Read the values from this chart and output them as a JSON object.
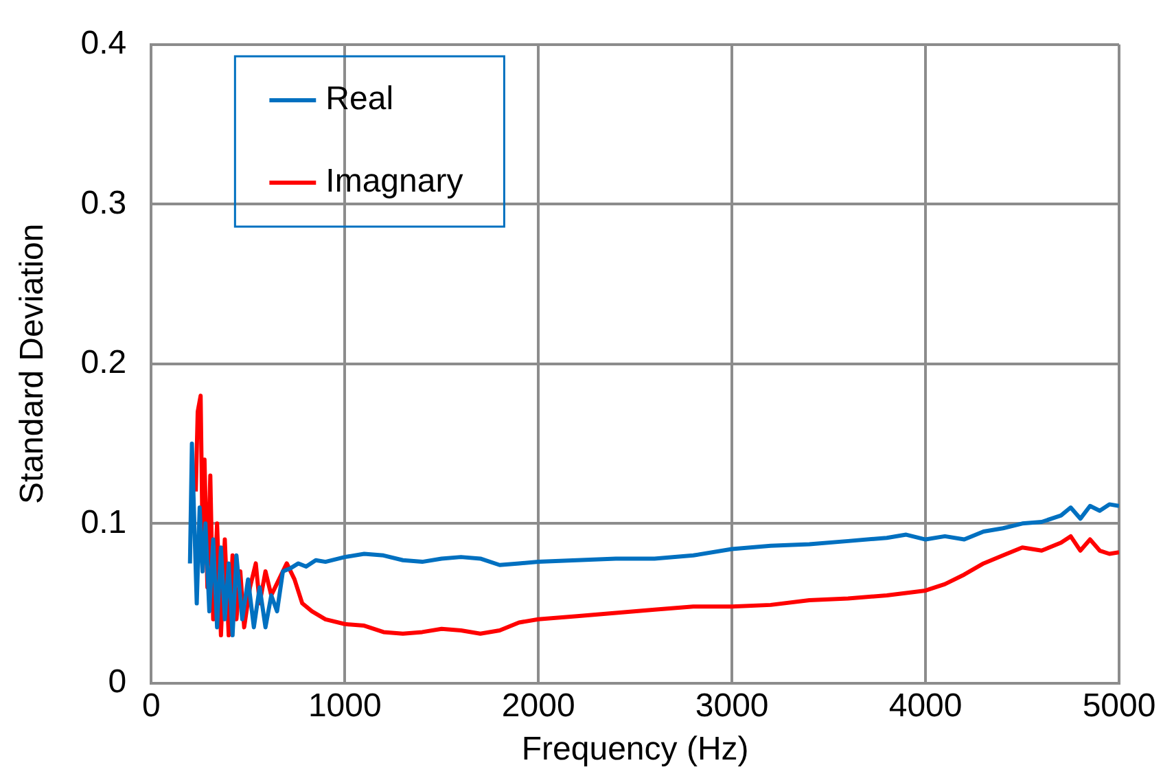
{
  "chart_data": {
    "type": "line",
    "xlabel": "Frequency (Hz)",
    "ylabel": "Standard Deviation",
    "xlim": [
      0,
      5000
    ],
    "xticks": [
      0,
      1000,
      2000,
      3000,
      4000,
      5000
    ],
    "ylim": [
      0,
      0.4
    ],
    "yticks": [
      0,
      0.1,
      0.2,
      0.3,
      0.4
    ],
    "grid": true,
    "legend": "top left",
    "marker": "none",
    "line_style": "solid",
    "series": [
      {
        "name": "Real",
        "color": "#0070c0",
        "x": [
          200,
          210,
          225,
          235,
          250,
          265,
          280,
          300,
          320,
          340,
          360,
          380,
          400,
          420,
          440,
          470,
          500,
          530,
          560,
          590,
          620,
          650,
          680,
          720,
          760,
          800,
          850,
          900,
          1000,
          1100,
          1200,
          1300,
          1400,
          1500,
          1600,
          1700,
          1800,
          1900,
          2000,
          2200,
          2400,
          2600,
          2800,
          3000,
          3200,
          3400,
          3600,
          3800,
          3900,
          4000,
          4100,
          4200,
          4300,
          4400,
          4500,
          4600,
          4700,
          4750,
          4800,
          4850,
          4900,
          4950,
          5000
        ],
        "values": [
          0.075,
          0.15,
          0.09,
          0.05,
          0.11,
          0.07,
          0.1,
          0.045,
          0.09,
          0.035,
          0.085,
          0.04,
          0.075,
          0.03,
          0.08,
          0.04,
          0.065,
          0.035,
          0.06,
          0.035,
          0.055,
          0.045,
          0.07,
          0.072,
          0.075,
          0.073,
          0.077,
          0.076,
          0.079,
          0.081,
          0.08,
          0.077,
          0.076,
          0.078,
          0.079,
          0.078,
          0.074,
          0.075,
          0.076,
          0.077,
          0.078,
          0.078,
          0.08,
          0.084,
          0.086,
          0.087,
          0.089,
          0.091,
          0.093,
          0.09,
          0.092,
          0.09,
          0.095,
          0.097,
          0.1,
          0.101,
          0.105,
          0.11,
          0.103,
          0.111,
          0.108,
          0.112,
          0.111
        ]
      },
      {
        "name": "Imagnary",
        "color": "#ff0000",
        "x": [
          230,
          240,
          255,
          265,
          275,
          290,
          305,
          320,
          340,
          360,
          380,
          400,
          420,
          440,
          460,
          480,
          510,
          540,
          560,
          590,
          620,
          660,
          700,
          740,
          780,
          830,
          900,
          1000,
          1100,
          1200,
          1300,
          1400,
          1500,
          1600,
          1700,
          1800,
          1900,
          2000,
          2200,
          2400,
          2600,
          2800,
          3000,
          3200,
          3400,
          3600,
          3800,
          4000,
          4100,
          4200,
          4300,
          4400,
          4500,
          4600,
          4700,
          4750,
          4800,
          4850,
          4900,
          4950,
          5000
        ],
        "values": [
          0.12,
          0.17,
          0.18,
          0.09,
          0.14,
          0.06,
          0.13,
          0.04,
          0.1,
          0.03,
          0.09,
          0.03,
          0.08,
          0.04,
          0.07,
          0.035,
          0.06,
          0.075,
          0.05,
          0.07,
          0.055,
          0.065,
          0.075,
          0.065,
          0.05,
          0.045,
          0.04,
          0.037,
          0.036,
          0.032,
          0.031,
          0.032,
          0.034,
          0.033,
          0.031,
          0.033,
          0.038,
          0.04,
          0.042,
          0.044,
          0.046,
          0.048,
          0.048,
          0.049,
          0.052,
          0.053,
          0.055,
          0.058,
          0.062,
          0.068,
          0.075,
          0.08,
          0.085,
          0.083,
          0.088,
          0.092,
          0.083,
          0.09,
          0.083,
          0.081,
          0.082
        ]
      }
    ]
  }
}
